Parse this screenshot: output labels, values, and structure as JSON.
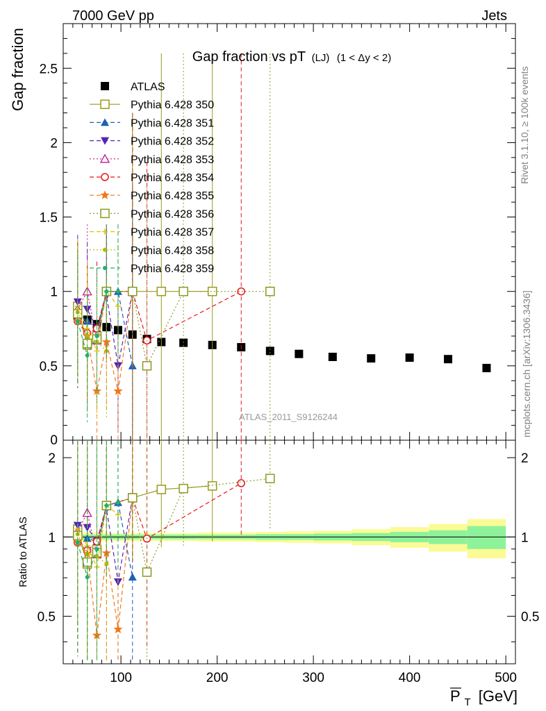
{
  "header": {
    "left": "7000 GeV pp",
    "right": "Jets"
  },
  "side_labels": {
    "rivet": "Rivet 3.1.10, ≥ 100k events",
    "mcplots": "mcplots.cern.ch [arXiv:1306.3436]"
  },
  "chart_data": {
    "type": "scatter",
    "title": "Gap fraction vs pT",
    "title_sub": "(LJ)",
    "title_extra": "(1 < Δy < 2)",
    "ylabel": "Gap fraction",
    "ratio_ylabel": "Ratio to ATLAS",
    "xlabel": "P_T [GeV]",
    "xlabel_main": "P",
    "xlabel_sub": "T",
    "xlabel_unit": "[GeV]",
    "watermark": "ATLAS_2011_S9126244",
    "xlim": [
      40,
      510
    ],
    "ylim": [
      0,
      2.8
    ],
    "ratio_ylim": [
      0.33,
      2.33
    ],
    "x_ticks": [
      "100",
      "200",
      "300",
      "400",
      "500"
    ],
    "y_ticks": [
      "0.5",
      "1",
      "1.5",
      "2",
      "2.5"
    ],
    "ratio_y_ticks": [
      "0.5",
      "1",
      "2"
    ],
    "series": [
      {
        "name": "ATLAS",
        "color": "#000000",
        "marker": "square-filled",
        "dash": "none",
        "x": [
          55,
          65,
          75,
          85,
          97,
          112,
          127,
          142,
          165,
          195,
          225,
          255,
          285,
          320,
          360,
          400,
          440,
          480
        ],
        "y": [
          0.84,
          0.81,
          0.78,
          0.76,
          0.74,
          0.71,
          0.68,
          0.66,
          0.655,
          0.64,
          0.625,
          0.6,
          0.58,
          0.56,
          0.55,
          0.555,
          0.545,
          0.485
        ]
      },
      {
        "name": "Pythia 6.428 350",
        "color": "#9a9a1e",
        "marker": "square-open",
        "dash": "solid",
        "x": [
          55,
          65,
          75,
          85,
          112,
          142,
          195
        ],
        "y": [
          0.9,
          0.64,
          0.7,
          1.0,
          1.0,
          1.0,
          1.0
        ]
      },
      {
        "name": "Pythia 6.428 351",
        "color": "#1f5fb4",
        "marker": "triangle-up-filled",
        "dash": "dashed",
        "x": [
          55,
          65,
          75,
          85,
          97,
          112
        ],
        "y": [
          0.85,
          0.8,
          0.75,
          1.0,
          1.0,
          0.5
        ]
      },
      {
        "name": "Pythia 6.428 352",
        "color": "#5522bb",
        "marker": "triangle-down-filled",
        "dash": "dashed",
        "x": [
          55,
          65,
          75,
          85,
          97,
          112
        ],
        "y": [
          0.93,
          0.88,
          0.75,
          0.97,
          0.5,
          1.0
        ]
      },
      {
        "name": "Pythia 6.428 353",
        "color": "#c0168e",
        "marker": "triangle-up-open",
        "dash": "dotted",
        "x": [
          55,
          65,
          75,
          85
        ],
        "y": [
          0.88,
          1.0,
          0.67,
          1.0
        ]
      },
      {
        "name": "Pythia 6.428 354",
        "color": "#e8141e",
        "marker": "circle-open",
        "dash": "dashed",
        "x": [
          55,
          65,
          75,
          85,
          112,
          127,
          225
        ],
        "y": [
          0.8,
          0.72,
          0.75,
          1.0,
          1.0,
          0.67,
          1.0
        ]
      },
      {
        "name": "Pythia 6.428 355",
        "color": "#f07818",
        "marker": "star-filled",
        "dash": "dashed",
        "x": [
          55,
          65,
          75,
          85,
          97,
          112
        ],
        "y": [
          0.8,
          0.7,
          0.33,
          0.66,
          0.33,
          1.0
        ]
      },
      {
        "name": "Pythia 6.428 356",
        "color": "#8a9a22",
        "marker": "square-open",
        "dash": "dotted",
        "x": [
          55,
          65,
          75,
          85,
          112,
          127,
          165,
          255
        ],
        "y": [
          0.85,
          0.65,
          0.68,
          1.0,
          1.0,
          0.5,
          1.0,
          1.0
        ]
      },
      {
        "name": "Pythia 6.428 357",
        "color": "#e0c000",
        "marker": "plus",
        "dash": "dashed",
        "x": [
          55,
          65,
          75,
          85,
          97
        ],
        "y": [
          0.9,
          0.75,
          0.6,
          1.0,
          0.9
        ]
      },
      {
        "name": "Pythia 6.428 358",
        "color": "#b8b800",
        "marker": "dot",
        "dash": "dotted",
        "x": [
          55,
          65,
          75,
          85
        ],
        "y": [
          0.86,
          0.7,
          0.66,
          0.6
        ]
      },
      {
        "name": "Pythia 6.428 359",
        "color": "#20b070",
        "marker": "dot",
        "dash": "dashed",
        "x": [
          55,
          65,
          75,
          85,
          97
        ],
        "y": [
          0.8,
          0.57,
          0.7,
          1.0,
          1.0
        ]
      }
    ],
    "band_bins": [
      {
        "lo": 50,
        "hi": 60,
        "inner": 0.025,
        "outer": 0.045
      },
      {
        "lo": 60,
        "hi": 70,
        "inner": 0.02,
        "outer": 0.04
      },
      {
        "lo": 70,
        "hi": 80,
        "inner": 0.02,
        "outer": 0.04
      },
      {
        "lo": 80,
        "hi": 90,
        "inner": 0.02,
        "outer": 0.035
      },
      {
        "lo": 90,
        "hi": 105,
        "inner": 0.02,
        "outer": 0.035
      },
      {
        "lo": 105,
        "hi": 120,
        "inner": 0.02,
        "outer": 0.035
      },
      {
        "lo": 120,
        "hi": 135,
        "inner": 0.02,
        "outer": 0.035
      },
      {
        "lo": 135,
        "hi": 150,
        "inner": 0.02,
        "outer": 0.035
      },
      {
        "lo": 150,
        "hi": 180,
        "inner": 0.02,
        "outer": 0.035
      },
      {
        "lo": 180,
        "hi": 210,
        "inner": 0.02,
        "outer": 0.04
      },
      {
        "lo": 210,
        "hi": 240,
        "inner": 0.02,
        "outer": 0.04
      },
      {
        "lo": 240,
        "hi": 270,
        "inner": 0.025,
        "outer": 0.045
      },
      {
        "lo": 270,
        "hi": 300,
        "inner": 0.025,
        "outer": 0.05
      },
      {
        "lo": 300,
        "hi": 340,
        "inner": 0.03,
        "outer": 0.055
      },
      {
        "lo": 340,
        "hi": 380,
        "inner": 0.035,
        "outer": 0.07
      },
      {
        "lo": 380,
        "hi": 420,
        "inner": 0.045,
        "outer": 0.09
      },
      {
        "lo": 420,
        "hi": 460,
        "inner": 0.06,
        "outer": 0.12
      },
      {
        "lo": 460,
        "hi": 500,
        "inner": 0.1,
        "outer": 0.17
      }
    ],
    "band_colors": {
      "inner": "#8ef29a",
      "outer": "#fbfb96"
    }
  }
}
